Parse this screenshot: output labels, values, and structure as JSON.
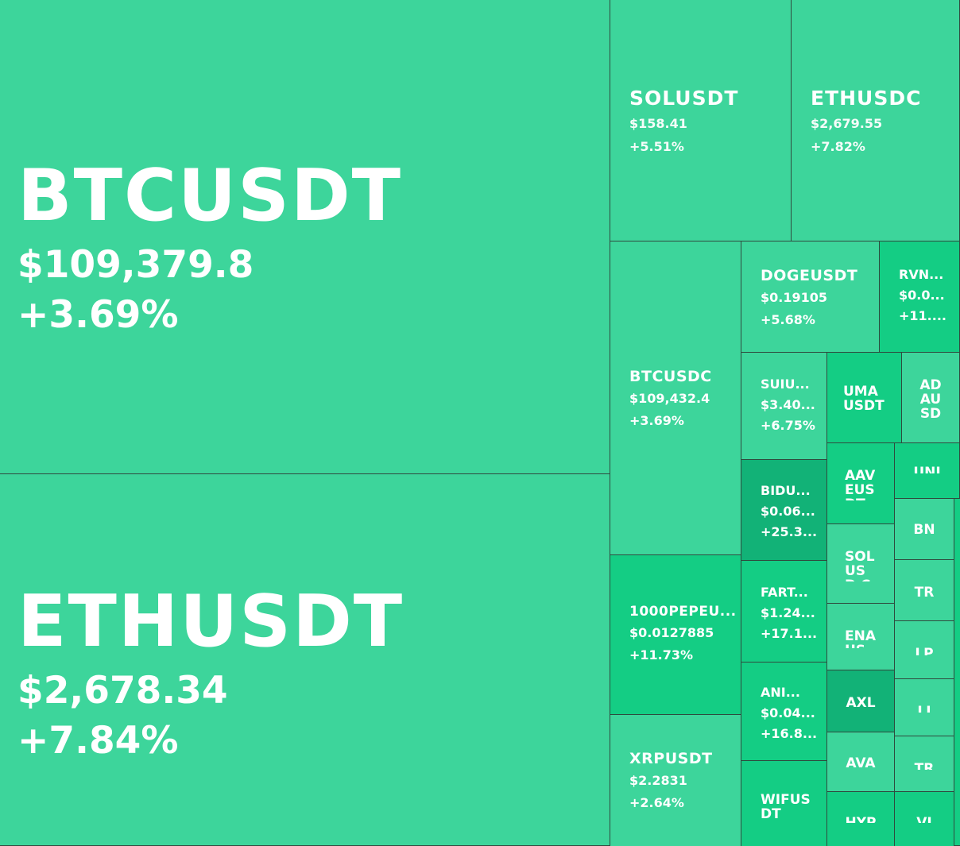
{
  "colors": {
    "up": "#3dd59b",
    "up_strong": "#14cd84",
    "up_max": "#12b277",
    "divider": "#2f4a3e",
    "text": "#ffffff"
  },
  "tiles": {
    "btcusdt": {
      "symbol": "BTCUSDT",
      "price": "$109,379.8",
      "change": "+3.69%"
    },
    "ethusdt": {
      "symbol": "ETHUSDT",
      "price": "$2,678.34",
      "change": "+7.84%"
    },
    "solusdt": {
      "symbol": "SOLUSDT",
      "price": "$158.41",
      "change": "+5.51%"
    },
    "ethusdc": {
      "symbol": "ETHUSDC",
      "price": "$2,679.55",
      "change": "+7.82%"
    },
    "btcusdc": {
      "symbol": "BTCUSDC",
      "price": "$109,432.4",
      "change": "+3.69%"
    },
    "dogeusdt": {
      "symbol": "DOGEUSDT",
      "price": "$0.19105",
      "change": "+5.68%"
    },
    "rvn": {
      "symbol": "RVN...",
      "price": "$0.0...",
      "change": "+11...."
    },
    "suiu": {
      "symbol": "SUIU...",
      "price": "$3.40...",
      "change": "+6.75%"
    },
    "umausdt": {
      "symbol": "UMA USDT"
    },
    "adausd": {
      "symbol": "AD AU SD"
    },
    "bidu": {
      "symbol": "BIDU...",
      "price": "$0.06...",
      "change": "+25.3..."
    },
    "aaveus": {
      "symbol": "AAV EUS DT"
    },
    "unit": {
      "symbol": "UNI"
    },
    "bn": {
      "symbol": "BN"
    },
    "solusd": {
      "symbol": "SOL USD C"
    },
    "pepe1000": {
      "symbol": "1000PEPEU...",
      "price": "$0.0127885",
      "change": "+11.73%"
    },
    "fart": {
      "symbol": "FART...",
      "price": "$1.24...",
      "change": "+17.1..."
    },
    "tr": {
      "symbol": "TR"
    },
    "ena": {
      "symbol": "ENA USD"
    },
    "lp": {
      "symbol": "LP"
    },
    "anim": {
      "symbol": "ANI...",
      "price": "$0.04...",
      "change": "+16.8..."
    },
    "axl": {
      "symbol": "AXL"
    },
    "li": {
      "symbol": "LI"
    },
    "xrpusdt": {
      "symbol": "XRPUSDT",
      "price": "$2.2831",
      "change": "+2.64%"
    },
    "ava": {
      "symbol": "AVA"
    },
    "tr2": {
      "symbol": "TR"
    },
    "wifusdt": {
      "symbol": "WIFUS DT"
    },
    "hyp": {
      "symbol": "HYP"
    },
    "vi": {
      "symbol": "VI"
    }
  }
}
